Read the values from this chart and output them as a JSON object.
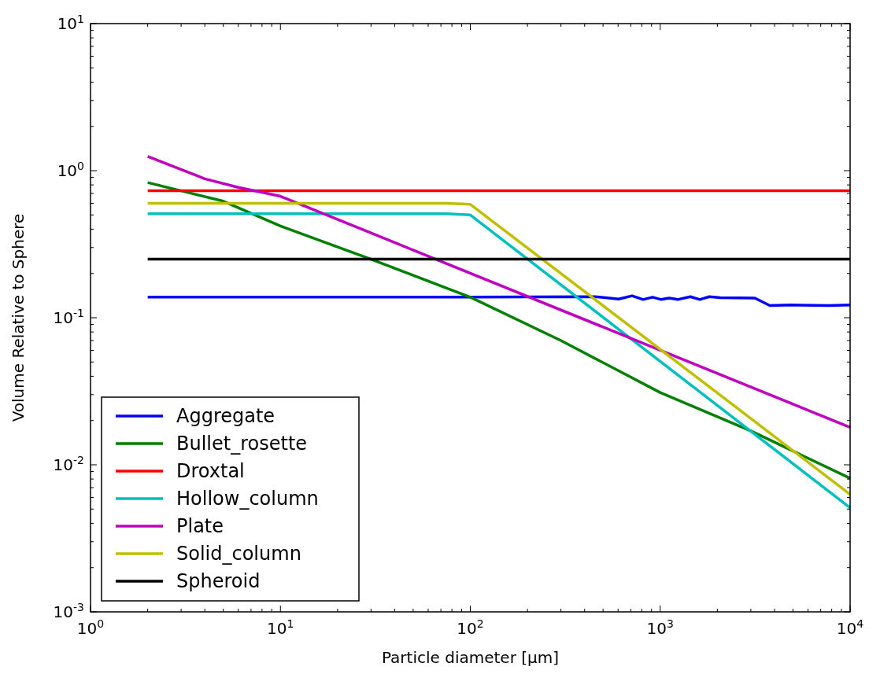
{
  "chart_data": {
    "type": "line",
    "xlabel": "Particle diameter [μm]",
    "ylabel": "Volume Relative to Sphere",
    "log": "xy",
    "grid": false,
    "legend": "bottom left",
    "line_style": "solid",
    "marker": "none",
    "xlim": [
      1,
      10000
    ],
    "ylim": [
      0.001,
      10
    ],
    "xticks": [
      {
        "value": 1,
        "label": "10$^{0}$"
      },
      {
        "value": 10,
        "label": "10$^{1}$"
      },
      {
        "value": 100,
        "label": "10$^{2}$"
      },
      {
        "value": 1000,
        "label": "10$^{3}$"
      },
      {
        "value": 10000,
        "label": "10$^{4}$"
      }
    ],
    "yticks": [
      {
        "value": 0.001,
        "label": "10$^{-3}$"
      },
      {
        "value": 0.01,
        "label": "10$^{-2}$"
      },
      {
        "value": 0.1,
        "label": "10$^{-1}$"
      },
      {
        "value": 1,
        "label": "10$^{0}$"
      },
      {
        "value": 10,
        "label": "10$^{1}$"
      }
    ],
    "series": [
      {
        "name": "Aggregate",
        "color": "#0000ff",
        "x": [
          2,
          100,
          454,
          604,
          711,
          813,
          911,
          1012,
          1114,
          1237,
          1441,
          1616,
          1811,
          2070,
          3150,
          3776,
          4840,
          7730,
          10000
        ],
        "values": [
          0.138,
          0.138,
          0.139,
          0.134,
          0.141,
          0.133,
          0.138,
          0.133,
          0.136,
          0.133,
          0.139,
          0.133,
          0.139,
          0.137,
          0.136,
          0.121,
          0.122,
          0.121,
          0.122
        ]
      },
      {
        "name": "Bullet_rosette",
        "color": "#008000",
        "x": [
          2,
          5,
          10,
          30,
          100,
          300,
          1000,
          3000,
          10000
        ],
        "values": [
          0.83,
          0.62,
          0.42,
          0.25,
          0.138,
          0.07,
          0.031,
          0.017,
          0.0081
        ]
      },
      {
        "name": "Droxtal",
        "color": "#ff0000",
        "x": [
          2,
          10000
        ],
        "values": [
          0.73,
          0.73
        ]
      },
      {
        "name": "Hollow_column",
        "color": "#00bfbf",
        "x": [
          2,
          75,
          100,
          10000
        ],
        "values": [
          0.51,
          0.51,
          0.5,
          0.0051
        ]
      },
      {
        "name": "Plate",
        "color": "#bf00bf",
        "x": [
          2,
          4,
          6,
          10,
          10000
        ],
        "values": [
          1.25,
          0.88,
          0.77,
          0.67,
          0.018
        ]
      },
      {
        "name": "Solid_column",
        "color": "#bfbf00",
        "x": [
          2,
          75,
          100,
          10000
        ],
        "values": [
          0.6,
          0.6,
          0.59,
          0.0063
        ]
      },
      {
        "name": "Spheroid",
        "color": "#000000",
        "x": [
          2,
          10000
        ],
        "values": [
          0.25,
          0.25
        ]
      }
    ]
  }
}
